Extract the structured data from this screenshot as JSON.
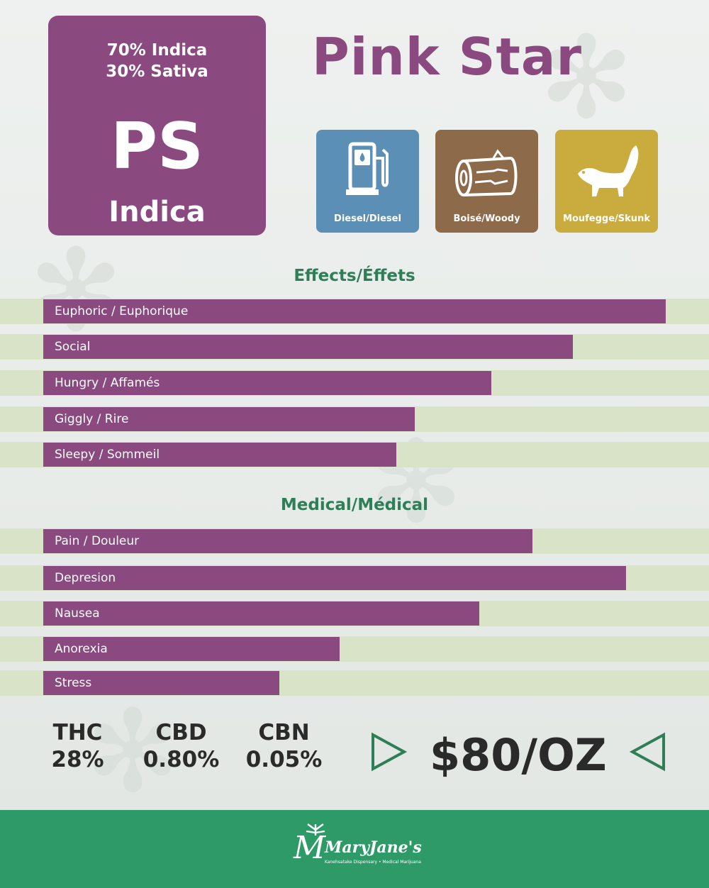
{
  "strain": {
    "indica_pct": "70% Indica",
    "sativa_pct": "30% Sativa",
    "abbreviation": "PS",
    "type": "Indica"
  },
  "title": "Pink Star",
  "aromas": [
    {
      "label": "Diesel/Diesel",
      "icon": "gas-pump-icon",
      "color": "#5b8fb6"
    },
    {
      "label": "Boisé/Woody",
      "icon": "log-icon",
      "color": "#8d6a4a"
    },
    {
      "label": "Moufegge/Skunk",
      "icon": "skunk-icon",
      "color": "#c9ac3d"
    }
  ],
  "effects": {
    "title": "Effects/Éffets",
    "items": [
      {
        "label": "Euphoric / Euphorique",
        "level": 0.935
      },
      {
        "label": "Social",
        "level": 0.795
      },
      {
        "label": "Hungry / Affamés",
        "level": 0.673
      },
      {
        "label": "Giggly / Rire",
        "level": 0.558
      },
      {
        "label": "Sleepy  / Sommeil",
        "level": 0.53
      }
    ]
  },
  "medical": {
    "title": "Medical/Médical",
    "items": [
      {
        "label": "Pain / Douleur",
        "level": 0.735
      },
      {
        "label": "Depresion",
        "level": 0.875
      },
      {
        "label": "Nausea",
        "level": 0.655
      },
      {
        "label": "Anorexia",
        "level": 0.445
      },
      {
        "label": "Stress",
        "level": 0.355
      }
    ]
  },
  "cannabinoids": [
    {
      "name": "THC",
      "value": "28%"
    },
    {
      "name": "CBD",
      "value": "0.80%"
    },
    {
      "name": "CBN",
      "value": "0.05%"
    }
  ],
  "price": "$80/OZ",
  "footer": {
    "brand": "MaryJane's",
    "tagline": "Kanehsatake Dispensary • Medical Marijuana"
  },
  "colors": {
    "purple": "#8a4a80",
    "green": "#2d9a68",
    "section_green": "#2e7e57",
    "track": "#d9e3c8"
  }
}
